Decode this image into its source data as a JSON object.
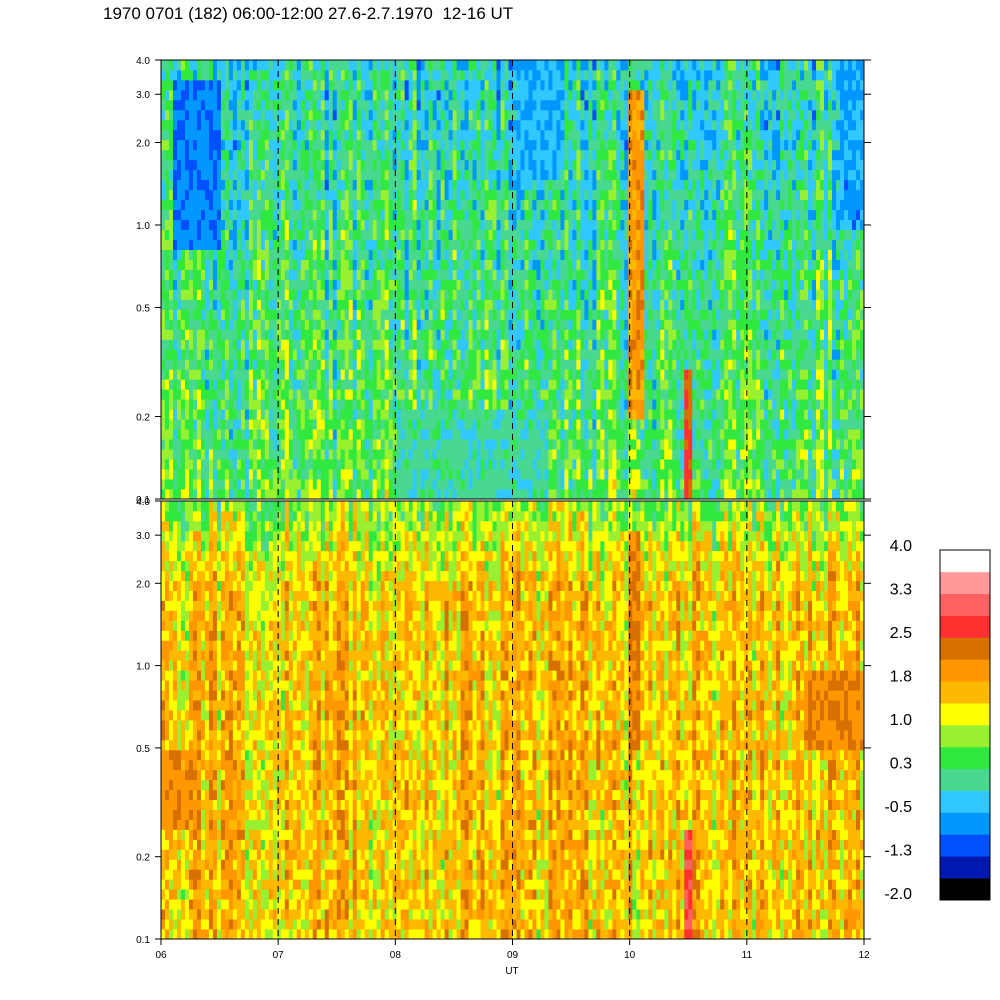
{
  "title": "1970 0701 (182) 06:00-12:00 27.6-2.7.1970  12-16 UT",
  "chart_data": {
    "type": "heatmap",
    "title": "1970 0701 (182) 06:00-12:00 27.6-2.7.1970  12-16 UT",
    "xlabel": "UT",
    "ylabel": "",
    "x_ticks": [
      "06",
      "07",
      "08",
      "09",
      "10",
      "11",
      "12"
    ],
    "xlim": [
      6,
      12
    ],
    "y_scale": "log",
    "ylim": [
      0.1,
      4.0
    ],
    "y_ticks": [
      "0.1",
      "0.2",
      "0.5",
      "1.0",
      "2.0",
      "3.0",
      "4.0"
    ],
    "y_tick_values": [
      0.1,
      0.2,
      0.5,
      1.0,
      2.0,
      3.0,
      4.0
    ],
    "hour_markers": [
      7,
      8,
      9,
      10,
      11
    ],
    "colorbar": {
      "labels": [
        "4.0",
        "3.3",
        "2.5",
        "1.8",
        "1.0",
        "0.3",
        "-0.5",
        "-1.3",
        "-2.0"
      ],
      "range": [
        -2.0,
        4.0
      ],
      "colors": [
        "#000000",
        "#0018b0",
        "#0050ff",
        "#0098ff",
        "#30c8ff",
        "#48d890",
        "#30e840",
        "#98f030",
        "#ffff00",
        "#ffb800",
        "#ff9800",
        "#d87000",
        "#ff3030",
        "#ff6060",
        "#ff9898",
        "#ffffff"
      ]
    },
    "panels": [
      {
        "name": "upper",
        "description_values": {
          "typical_level": 0.5,
          "features": [
            {
              "x_range": [
                6.1,
                6.5
              ],
              "y_range": [
                0.8,
                3.5
              ],
              "level": -0.8
            },
            {
              "x_range": [
                9.05,
                9.4
              ],
              "y_range": [
                1.5,
                4.0
              ],
              "level": -0.5
            },
            {
              "x_range": [
                11.8,
                12.0
              ],
              "y_range": [
                1.0,
                4.0
              ],
              "level": -0.6
            },
            {
              "x_range": [
                8.0,
                9.3
              ],
              "y_range": [
                0.1,
                0.22
              ],
              "level": 0.0
            },
            {
              "x_range": [
                10.0,
                10.12
              ],
              "y_range": [
                0.2,
                3.0
              ],
              "level": 1.9
            },
            {
              "x_range": [
                10.45,
                10.55
              ],
              "y_range": [
                0.1,
                0.3
              ],
              "level": 2.5
            }
          ]
        }
      },
      {
        "name": "lower",
        "description_values": {
          "typical_level": 1.5,
          "features": [
            {
              "x_range": [
                6.0,
                6.3
              ],
              "y_range": [
                0.25,
                0.5
              ],
              "level": 2.0
            },
            {
              "x_range": [
                11.5,
                12.0
              ],
              "y_range": [
                0.5,
                1.0
              ],
              "level": 2.1
            },
            {
              "x_range": [
                10.0,
                10.1
              ],
              "y_range": [
                0.5,
                3.0
              ],
              "level": 2.2
            },
            {
              "x_range": [
                10.47,
                10.55
              ],
              "y_range": [
                0.1,
                0.25
              ],
              "level": 2.8
            }
          ]
        }
      }
    ]
  }
}
